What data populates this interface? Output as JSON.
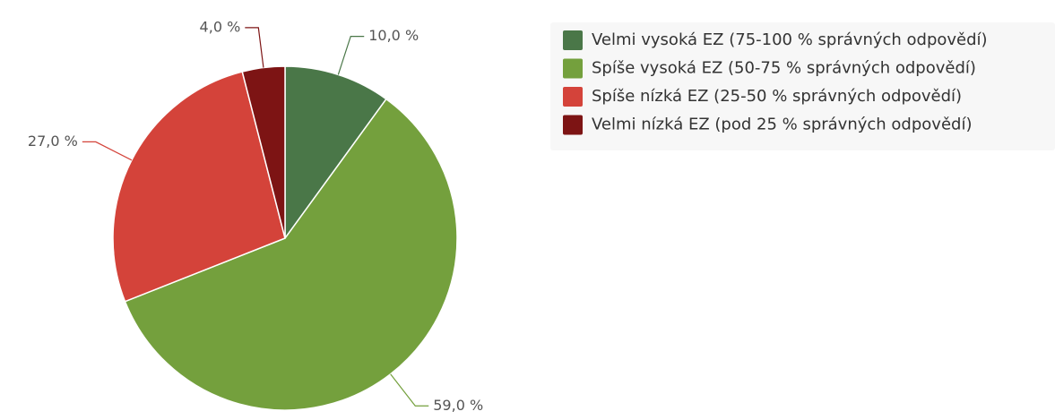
{
  "chart_data": {
    "type": "pie",
    "categories": [
      "Velmi vysoká EZ (75-100 % správných odpovědí)",
      "Spíše vysoká EZ (50-75 % správných odpovědí)",
      "Spíše nízká EZ (25-50 % správných odpovědí)",
      "Velmi nízká EZ (pod 25 % správných odpovědí)"
    ],
    "values": [
      10,
      59,
      27,
      4
    ],
    "value_labels": [
      "10,0 %",
      "59,0 %",
      "27,0 %",
      "4,0 %"
    ],
    "colors": [
      "#4a7748",
      "#74a03d",
      "#d4433a",
      "#7d1414"
    ],
    "legend": "top-right"
  }
}
